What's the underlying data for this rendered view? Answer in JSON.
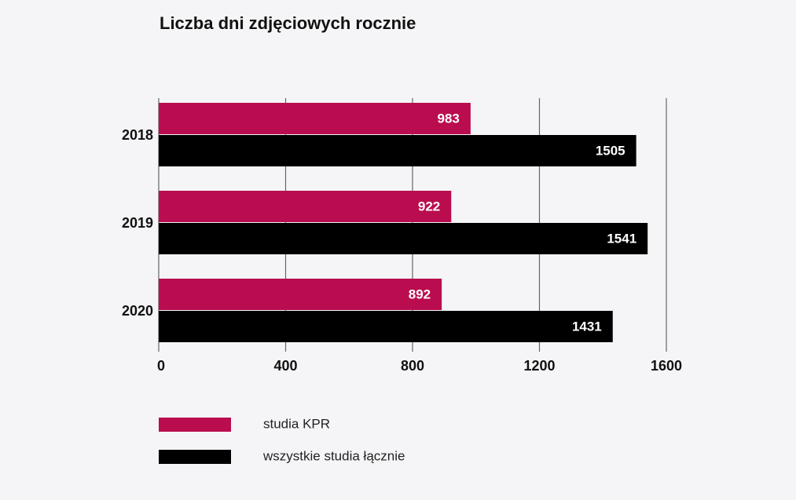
{
  "chart_data": {
    "type": "bar",
    "orientation": "horizontal",
    "title": "Liczba dni zdjęciowych rocznie",
    "categories": [
      "2018",
      "2019",
      "2020"
    ],
    "series": [
      {
        "name": "studia KPR",
        "color": "#b90d4f",
        "values": [
          983,
          922,
          892
        ]
      },
      {
        "name": "wszystkie studia łącznie",
        "color": "#000000",
        "values": [
          1505,
          1541,
          1431
        ]
      }
    ],
    "xlim": [
      0,
      1600
    ],
    "xticks": [
      0,
      400,
      800,
      1200,
      1600
    ],
    "grid": true,
    "legend": "bottom-left"
  }
}
